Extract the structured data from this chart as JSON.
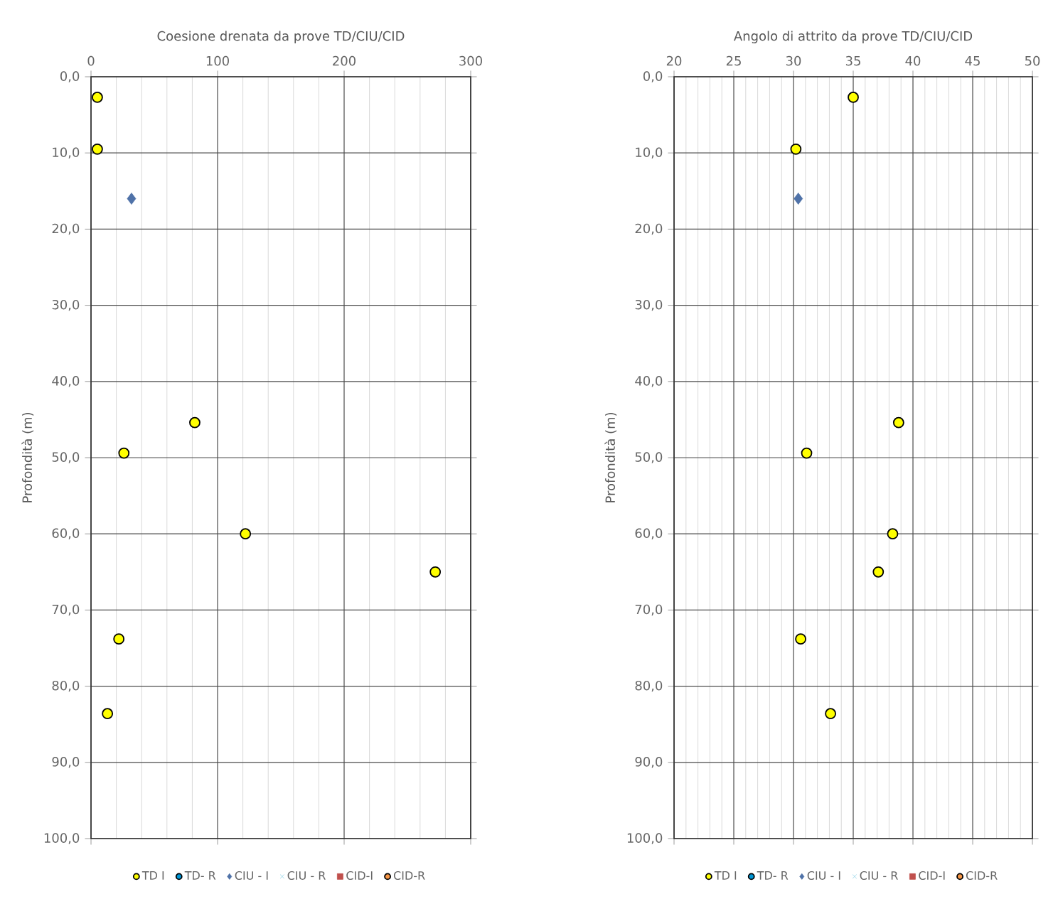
{
  "chart_data": [
    {
      "type": "scatter",
      "title": "Coesione drenata da prove  TD/CIU/CID",
      "ylabel": "Profondità (m)",
      "xlim": [
        0,
        300
      ],
      "xticks": [
        0,
        100,
        200,
        300
      ],
      "ylim": [
        100,
        0
      ],
      "yticks": [
        {
          "value": 0,
          "label": "0,0"
        },
        {
          "value": 10,
          "label": "10,0"
        },
        {
          "value": 20,
          "label": "20,0"
        },
        {
          "value": 30,
          "label": "30,0"
        },
        {
          "value": 40,
          "label": "40,0"
        },
        {
          "value": 50,
          "label": "50,0"
        },
        {
          "value": 60,
          "label": "60,0"
        },
        {
          "value": 70,
          "label": "70,0"
        },
        {
          "value": 80,
          "label": "80,0"
        },
        {
          "value": 90,
          "label": "90,0"
        },
        {
          "value": 100,
          "label": "100,0"
        }
      ],
      "grid": true,
      "legend": "bottom",
      "series": [
        {
          "name": "TD I",
          "color": "#ffff00",
          "marker": "circle",
          "x": [
            5,
            5,
            82,
            26,
            122,
            272,
            22,
            13
          ],
          "values": [
            2.7,
            9.5,
            45.4,
            49.4,
            60,
            65,
            73.8,
            83.6
          ]
        },
        {
          "name": "TD- R",
          "color": "#0096d6",
          "marker": "circle"
        },
        {
          "name": "CIU - I",
          "color": "#4f72a8",
          "marker": "diamond",
          "x": [
            32
          ],
          "values": [
            16
          ]
        },
        {
          "name": "CIU - R",
          "color": "#8fd3e8",
          "marker": "cross"
        },
        {
          "name": "CID-I",
          "color": "#c0504d",
          "marker": "square"
        },
        {
          "name": "CID-R",
          "color": "#f79646",
          "marker": "circle"
        }
      ]
    },
    {
      "type": "scatter",
      "title": "Angolo di attrito da prove  TD/CIU/CID",
      "ylabel": "Profondità (m)",
      "xlim": [
        20,
        50
      ],
      "xticks": [
        20,
        25,
        30,
        35,
        40,
        45,
        50
      ],
      "ylim": [
        100,
        0
      ],
      "yticks": [
        {
          "value": 0,
          "label": "0,0"
        },
        {
          "value": 10,
          "label": "10,0"
        },
        {
          "value": 20,
          "label": "20,0"
        },
        {
          "value": 30,
          "label": "30,0"
        },
        {
          "value": 40,
          "label": "40,0"
        },
        {
          "value": 50,
          "label": "50,0"
        },
        {
          "value": 60,
          "label": "60,0"
        },
        {
          "value": 70,
          "label": "70,0"
        },
        {
          "value": 80,
          "label": "80,0"
        },
        {
          "value": 90,
          "label": "90,0"
        },
        {
          "value": 100,
          "label": "100,0"
        }
      ],
      "grid": true,
      "legend": "bottom",
      "series": [
        {
          "name": "TD I",
          "color": "#ffff00",
          "marker": "circle",
          "x": [
            35,
            30.2,
            38.8,
            31.1,
            38.3,
            37.1,
            30.6,
            33.1
          ],
          "values": [
            2.7,
            9.5,
            45.4,
            49.4,
            60,
            65,
            73.8,
            83.6
          ]
        },
        {
          "name": "TD- R",
          "color": "#0096d6",
          "marker": "circle"
        },
        {
          "name": "CIU - I",
          "color": "#4f72a8",
          "marker": "diamond",
          "x": [
            30.4
          ],
          "values": [
            16
          ]
        },
        {
          "name": "CIU - R",
          "color": "#8fd3e8",
          "marker": "cross"
        },
        {
          "name": "CID-I",
          "color": "#c0504d",
          "marker": "square"
        },
        {
          "name": "CID-R",
          "color": "#f79646",
          "marker": "circle"
        }
      ]
    }
  ]
}
